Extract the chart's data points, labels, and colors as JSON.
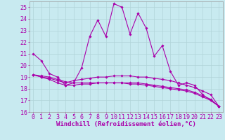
{
  "xlabel": "Windchill (Refroidissement éolien,°C)",
  "ylabel": "",
  "xlim": [
    -0.5,
    23.5
  ],
  "ylim": [
    16,
    25.5
  ],
  "xticks": [
    0,
    1,
    2,
    3,
    4,
    5,
    6,
    7,
    8,
    9,
    10,
    11,
    12,
    13,
    14,
    15,
    16,
    17,
    18,
    19,
    20,
    21,
    22,
    23
  ],
  "yticks": [
    16,
    17,
    18,
    19,
    20,
    21,
    22,
    23,
    24,
    25
  ],
  "bg_color": "#c8eaf0",
  "line_color": "#aa00aa",
  "grid_color": "#b0d4d8",
  "series": [
    [
      21.0,
      20.4,
      19.3,
      19.0,
      18.3,
      18.5,
      19.8,
      22.5,
      23.9,
      22.5,
      25.3,
      25.0,
      22.7,
      24.5,
      23.2,
      20.8,
      21.7,
      19.5,
      18.3,
      18.5,
      18.3,
      17.5,
      17.0,
      16.5
    ],
    [
      19.2,
      19.0,
      18.9,
      18.7,
      18.5,
      18.7,
      18.8,
      18.9,
      19.0,
      19.0,
      19.1,
      19.1,
      19.1,
      19.0,
      19.0,
      18.9,
      18.8,
      18.7,
      18.5,
      18.3,
      18.1,
      17.8,
      17.5,
      16.5
    ],
    [
      19.2,
      19.0,
      18.8,
      18.5,
      18.3,
      18.3,
      18.4,
      18.4,
      18.5,
      18.5,
      18.5,
      18.5,
      18.5,
      18.5,
      18.4,
      18.3,
      18.2,
      18.1,
      18.0,
      17.9,
      17.7,
      17.4,
      17.1,
      16.5
    ],
    [
      19.2,
      19.1,
      19.0,
      18.8,
      18.6,
      18.5,
      18.5,
      18.5,
      18.5,
      18.5,
      18.5,
      18.5,
      18.4,
      18.4,
      18.3,
      18.2,
      18.1,
      18.0,
      17.9,
      17.8,
      17.6,
      17.3,
      17.0,
      16.5
    ]
  ],
  "xlabel_fontsize": 6.5,
  "tick_fontsize": 6.0,
  "line_width": 0.8,
  "marker": "D",
  "marker_size": 1.8
}
